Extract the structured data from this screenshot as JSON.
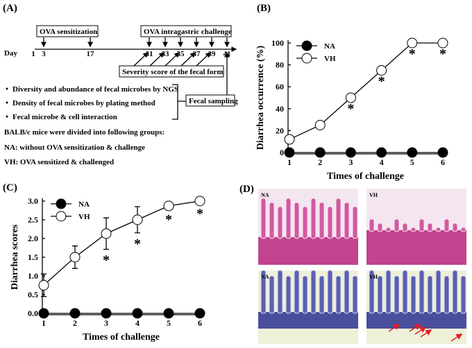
{
  "panel_a": {
    "label": "(A)",
    "sensitization": "OVA sensitization",
    "challenge": "OVA intragastric challenge",
    "day_prefix": "Day",
    "days": [
      "1",
      "3",
      "17",
      "31",
      "33",
      "35",
      "37",
      "39",
      "41"
    ],
    "severity": "Severity score of the fecal form",
    "bullets": [
      "Diversity and abundance of fecal microbes by NGS",
      "Density of fecal microbes by plating method",
      "Fecal microbe & cell interaction"
    ],
    "fecal_sampling": "Fecal sampling",
    "groups_intro": "BALB/c mice were divided into following groups:",
    "groups": [
      "NA: without OVA sensitization & challenge",
      "VH: OVA sensitized & challenged"
    ]
  },
  "chart_data": [
    {
      "type": "line",
      "panel_label": "(B)",
      "ylabel": "Diarrhea occurrence (%)",
      "xlabel": "Times of challenge",
      "x": [
        1,
        2,
        3,
        4,
        5,
        6
      ],
      "xlim": [
        1,
        6
      ],
      "xticks": [
        1,
        2,
        3,
        4,
        5,
        6
      ],
      "ylim": [
        0,
        100
      ],
      "yticks": [
        0,
        20,
        40,
        60,
        80,
        100
      ],
      "legend": "upper left",
      "series": [
        {
          "name": "NA",
          "color": "#000000",
          "values": [
            0,
            0,
            0,
            0,
            0,
            0
          ]
        },
        {
          "name": "VH",
          "color": "#ffffff",
          "values": [
            12,
            25,
            50,
            75,
            100,
            100
          ]
        }
      ],
      "annotations": [
        {
          "x": 3,
          "text": "*"
        },
        {
          "x": 4,
          "text": "*"
        },
        {
          "x": 5,
          "text": "*"
        },
        {
          "x": 6,
          "text": "*"
        }
      ]
    },
    {
      "type": "line",
      "panel_label": "(C)",
      "ylabel": "Diarrhea scores",
      "xlabel": "Times of challenge",
      "x": [
        1,
        2,
        3,
        4,
        5,
        6
      ],
      "xlim": [
        1,
        6
      ],
      "xticks": [
        1,
        2,
        3,
        4,
        5,
        6
      ],
      "ylim": [
        0,
        3
      ],
      "yticks": [
        {
          "value": 0,
          "label": "0.0"
        },
        {
          "value": 0.5,
          "label": "0.5"
        },
        {
          "value": 1,
          "label": "1.0"
        },
        {
          "value": 1.5,
          "label": "1.5"
        },
        {
          "value": 2,
          "label": "2.0"
        },
        {
          "value": 2.5,
          "label": "2.5"
        },
        {
          "value": 3,
          "label": "3.0"
        }
      ],
      "legend": "upper left",
      "series": [
        {
          "name": "NA",
          "color": "#000000",
          "values": [
            0,
            0,
            0,
            0,
            0,
            0
          ]
        },
        {
          "name": "VH",
          "color": "#ffffff",
          "values": [
            0.75,
            1.5,
            2.13,
            2.5,
            2.87,
            3.0
          ],
          "errors": [
            0.3,
            0.3,
            0.42,
            0.35,
            0.07,
            0.05
          ]
        }
      ],
      "annotations": [
        {
          "x": 3,
          "text": "*"
        },
        {
          "x": 4,
          "text": "*"
        },
        {
          "x": 5,
          "text": "*"
        },
        {
          "x": 6,
          "text": "*"
        }
      ]
    }
  ],
  "panel_d": {
    "label": "(D)",
    "images": [
      "NA",
      "VH",
      "NA",
      "VH"
    ]
  }
}
